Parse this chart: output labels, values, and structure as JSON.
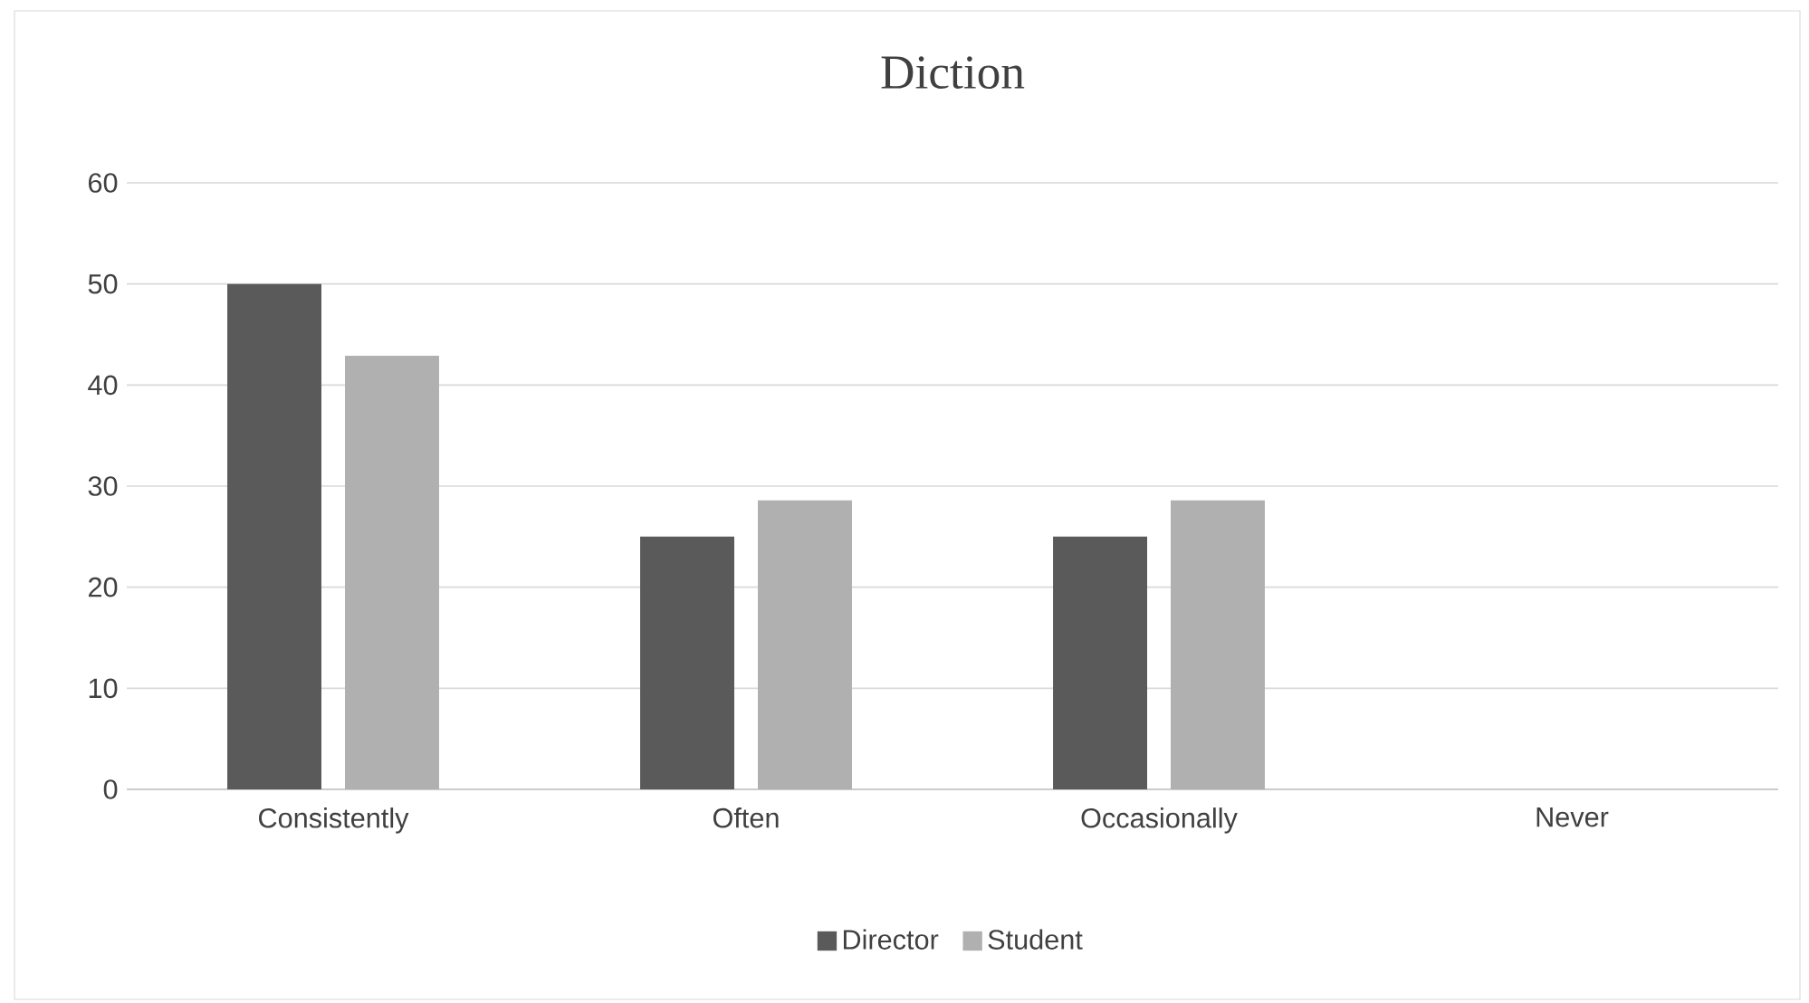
{
  "chart_data": {
    "type": "bar",
    "title": "Diction",
    "categories": [
      "Consistently",
      "Often",
      "Occasionally",
      "Never"
    ],
    "series": [
      {
        "name": "Director",
        "color": "#5a5a5a",
        "values": [
          50,
          25,
          25,
          0
        ]
      },
      {
        "name": "Student",
        "color": "#b0b0b0",
        "values": [
          42.9,
          28.6,
          28.6,
          0
        ]
      }
    ],
    "ylim": [
      0,
      60
    ],
    "yticks": [
      0,
      10,
      20,
      30,
      40,
      50,
      60
    ],
    "grid": "y",
    "legend": "bottom"
  }
}
